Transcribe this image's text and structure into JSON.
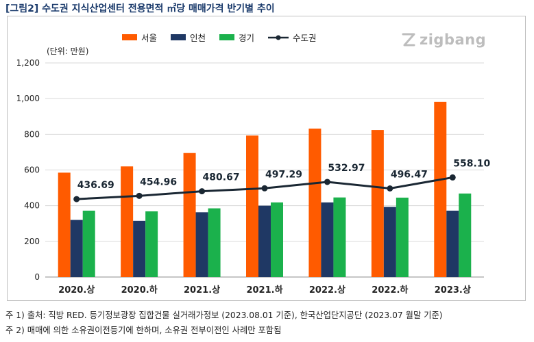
{
  "title": "[그림2] 수도권 지식산업센터 전용면적 ㎡당 매매가격 반기별 추이",
  "logo": "zigbang",
  "unit_label": "(단위: 만원)",
  "colors": {
    "seoul": "#ff5b00",
    "incheon": "#1f3864",
    "gyeonggi": "#1bb14c",
    "metro": "#1a2733"
  },
  "notes": [
    "주 1) 출처: 직방 RED. 등기정보광장 집합건물 실거래가정보 (2023.08.01 기준), 한국산업단지공단 (2023.07 월말 기준)",
    "주 2) 매매에 의한 소유권이전등기에 한하며, 소유권 전부이전인 사례만 포함됨"
  ],
  "chart_data": {
    "type": "bar",
    "categories": [
      "2020.상",
      "2020.하",
      "2021.상",
      "2021.하",
      "2022.상",
      "2022.하",
      "2023.상"
    ],
    "series": [
      {
        "name": "서울",
        "type": "bar",
        "values": [
          585,
          620,
          695,
          793,
          832,
          824,
          982
        ]
      },
      {
        "name": "인천",
        "type": "bar",
        "values": [
          320,
          315,
          363,
          400,
          418,
          393,
          372
        ]
      },
      {
        "name": "경기",
        "type": "bar",
        "values": [
          372,
          368,
          385,
          418,
          446,
          445,
          468
        ]
      },
      {
        "name": "수도권",
        "type": "line",
        "values": [
          436.69,
          454.96,
          480.67,
          497.29,
          532.97,
          496.47,
          558.1
        ],
        "labels": [
          "436.69",
          "454.96",
          "480.67",
          "497.29",
          "532.97",
          "496.47",
          "558.10"
        ]
      }
    ],
    "ylim": [
      0,
      1200
    ],
    "yticks": [
      "0",
      "200",
      "400",
      "600",
      "800",
      "1,000",
      "1,200"
    ],
    "ytick_values": [
      0,
      200,
      400,
      600,
      800,
      1000,
      1200
    ],
    "grid": true,
    "legend": "top-center"
  }
}
